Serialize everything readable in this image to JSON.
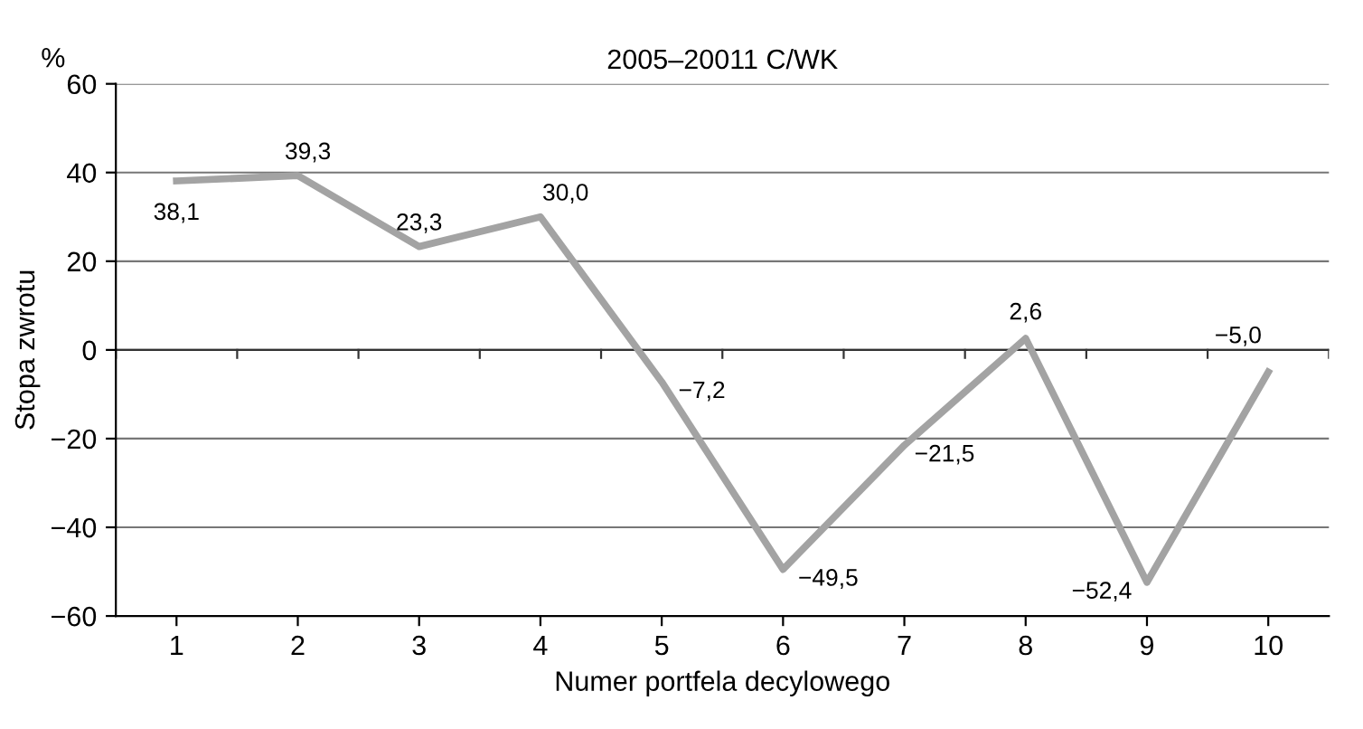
{
  "chart_data": {
    "type": "line",
    "title": "2005–20011 C/WK",
    "xlabel": "Numer portfela decylowego",
    "ylabel": "Stopa zwrotu",
    "annotations": [
      "%"
    ],
    "categories": [
      "1",
      "2",
      "3",
      "4",
      "5",
      "6",
      "7",
      "8",
      "9",
      "10"
    ],
    "series": [
      {
        "color": "#a3a3a3",
        "values": [
          38.1,
          39.3,
          23.3,
          30.0,
          -7.2,
          -49.5,
          -21.5,
          2.6,
          -52.4,
          -5.0
        ],
        "value_labels": [
          "38,1",
          "39,3",
          "23,3",
          "30,0",
          "−7,2",
          "−49,5",
          "−21,5",
          "2,6",
          "−52,4",
          "−5,0"
        ]
      }
    ],
    "ylim": [
      -60,
      60
    ],
    "yticks": [
      {
        "value": -60,
        "label": "−60"
      },
      {
        "value": -40,
        "label": "−40"
      },
      {
        "value": -20,
        "label": "−20"
      },
      0,
      20,
      40,
      60
    ],
    "grid": "y",
    "legend": false,
    "marker": "none",
    "line_style": "solid"
  }
}
